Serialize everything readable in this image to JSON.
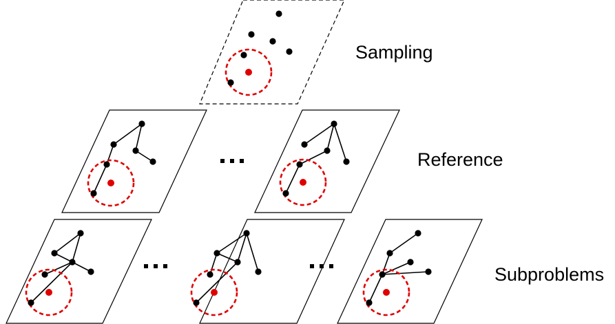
{
  "labels": {
    "sampling": "Sampling",
    "reference": "Reference",
    "subproblems": "Subproblems"
  },
  "ellipsis": "…",
  "colors": {
    "node": "#000000",
    "center": "#e00000",
    "circle": "#e00000",
    "edge": "#000000",
    "panel_border": "#000000"
  },
  "levels": [
    {
      "name": "Sampling",
      "panels": [
        {
          "style": "dashed",
          "nodes": 6,
          "edges": 0
        }
      ]
    },
    {
      "name": "Reference",
      "panels": [
        {
          "style": "solid",
          "nodes": 6,
          "edges": 5
        },
        {
          "style": "solid",
          "nodes": 6,
          "edges": 5
        }
      ]
    },
    {
      "name": "Subproblems",
      "panels": [
        {
          "style": "solid",
          "nodes": 6,
          "edges": 5
        },
        {
          "style": "solid",
          "nodes": 6,
          "edges": 5
        },
        {
          "style": "solid",
          "nodes": 6,
          "edges": 5
        }
      ]
    }
  ]
}
